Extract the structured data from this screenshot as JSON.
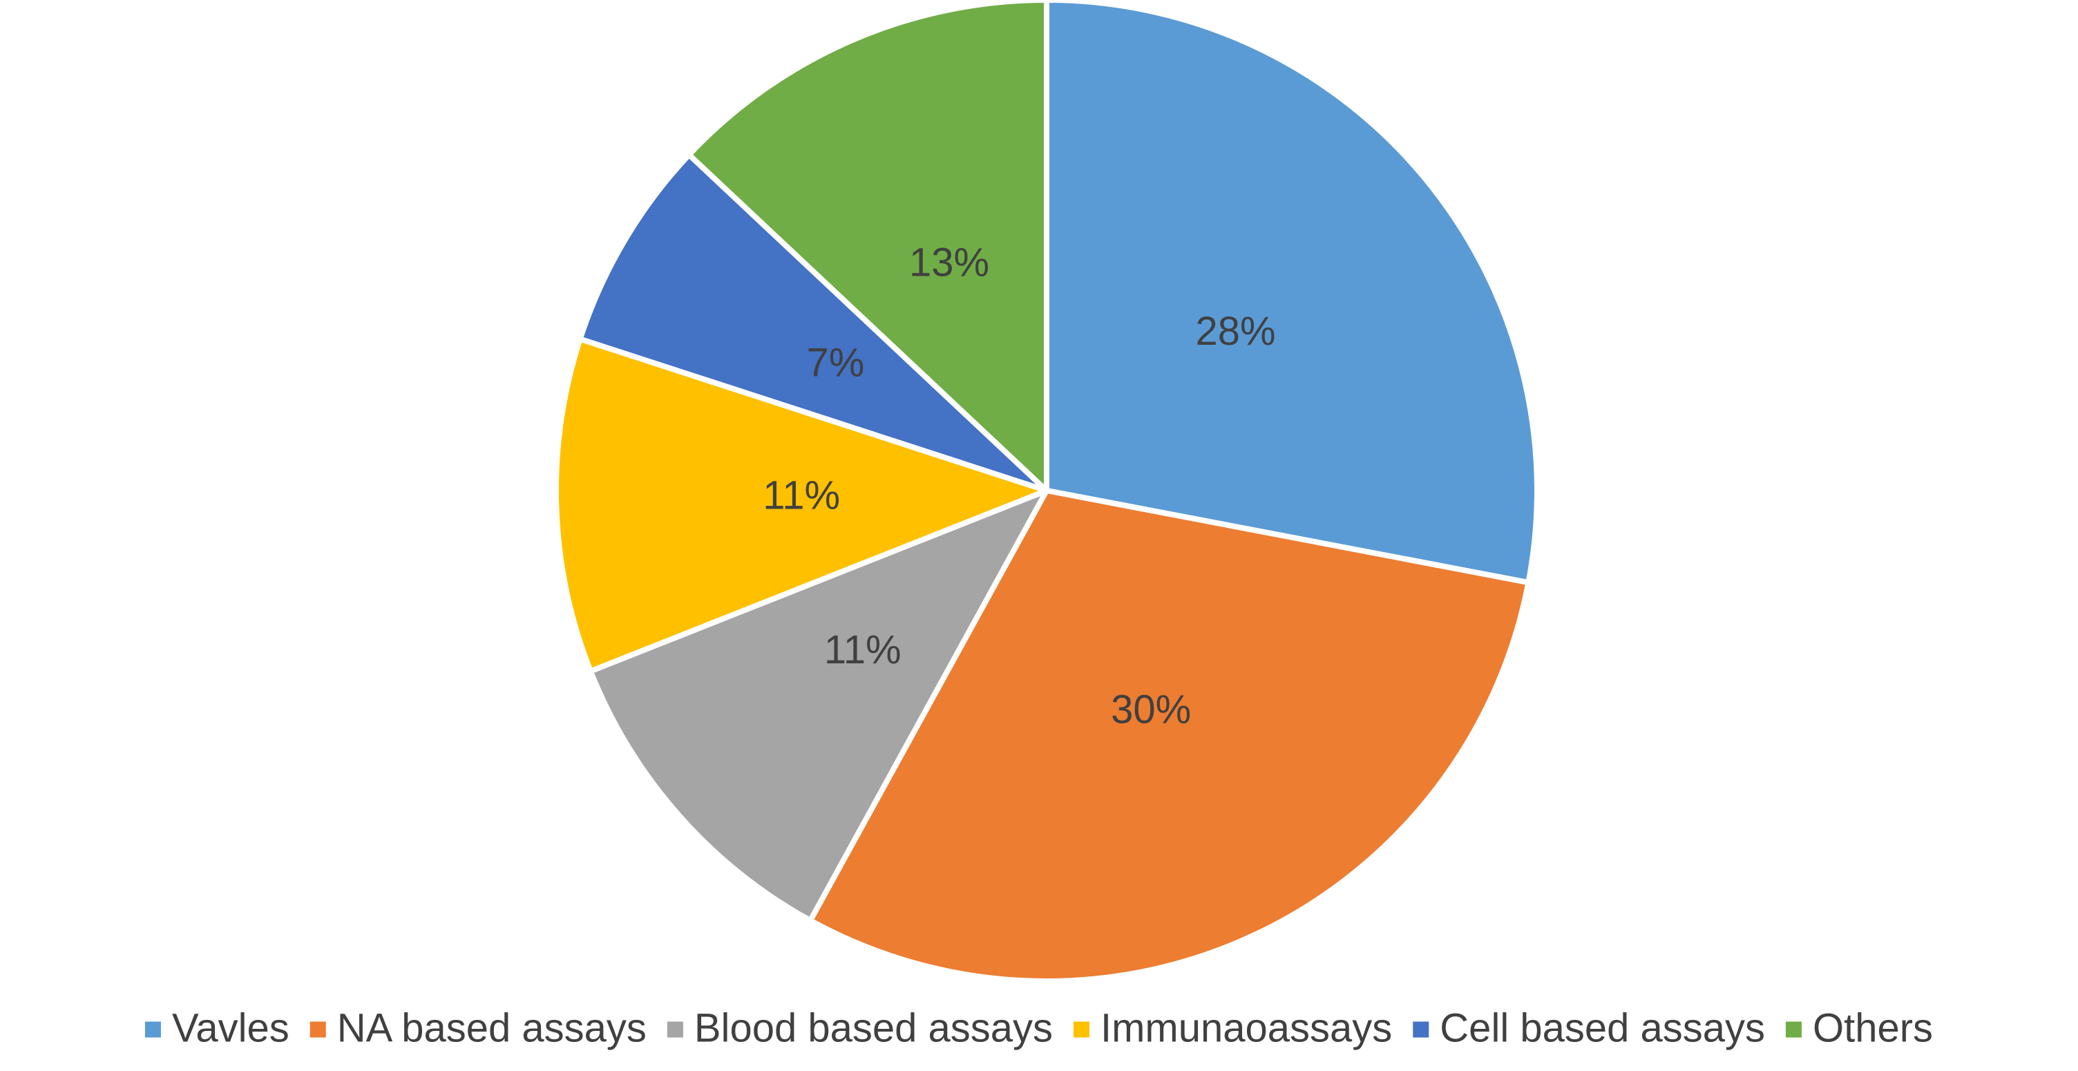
{
  "chart_data": {
    "type": "pie",
    "categories": [
      "Vavles",
      "NA based assays",
      "Blood based assays",
      "Immunaoassays",
      "Cell based assays",
      "Others"
    ],
    "values": [
      28,
      30,
      11,
      11,
      7,
      13
    ],
    "value_labels": [
      "28%",
      "30%",
      "11%",
      "11%",
      "7%",
      "13%"
    ],
    "colors": [
      "#5b9bd5",
      "#ed7d31",
      "#a5a5a5",
      "#ffc000",
      "#4472c4",
      "#70ad47"
    ],
    "legend": "bottom"
  }
}
